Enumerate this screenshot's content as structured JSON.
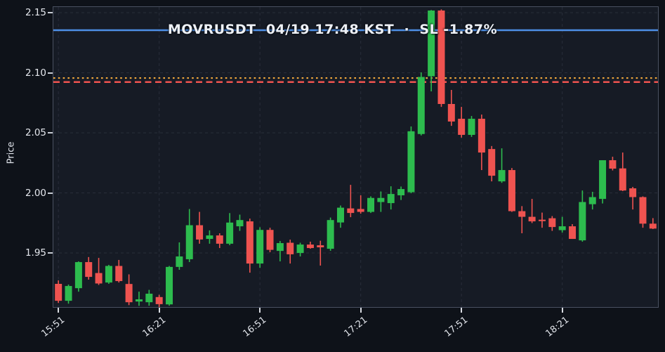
{
  "title": "MOVRUSDT  04/19 17:48 KST  ·  SL -1.87%",
  "colors": {
    "figure_bg": "#0e1219",
    "plot_bg": "#161b25",
    "spine": "#4a5161",
    "grid": "#272c38",
    "candle_up": "#2dbc4e",
    "candle_down": "#ef5350",
    "line_blue": "#4d8fe6",
    "line_orange": "#f0a73c",
    "line_red": "#f0534f",
    "tick_text": "#e4e7ed"
  },
  "chart_data": {
    "type": "candlestick",
    "title": "MOVRUSDT  04/19 17:48 KST  ·  SL -1.87%",
    "symbol": "MOVRUSDT",
    "event_time": "04/19 17:48 KST",
    "stoploss_label": "SL -1.87%",
    "xlabel": "",
    "ylabel": "Price",
    "ylim": [
      1.905,
      2.1547
    ],
    "y_ticks": [
      2.15,
      2.1,
      2.05,
      2.0,
      1.95
    ],
    "y_tick_labels": [
      "2.15",
      "2.10",
      "2.05",
      "2.00",
      "1.95"
    ],
    "x_tick_indices": [
      0,
      10,
      20,
      30,
      40,
      50
    ],
    "x_tick_labels": [
      "15:51",
      "16:21",
      "16:51",
      "17:21",
      "17:51",
      "18:21"
    ],
    "grid": "dashed",
    "interval_minutes": 3,
    "hlines": [
      {
        "name": "blue-solid-line",
        "value": 2.1354,
        "style": "solid",
        "color": "#4d8fe6",
        "width": 2.5
      },
      {
        "name": "orange-dotted-line",
        "value": 2.0956,
        "style": "dotted",
        "color": "#f0a73c",
        "width": 2.2
      },
      {
        "name": "red-dashed-line",
        "value": 2.0923,
        "style": "dashed",
        "color": "#f0534f",
        "width": 2.5
      }
    ],
    "candles_columns": [
      "time",
      "open",
      "high",
      "low",
      "close"
    ],
    "candles": [
      [
        "15:51",
        1.9243,
        1.9272,
        1.9084,
        1.9102
      ],
      [
        "15:54",
        1.9102,
        1.9237,
        1.9078,
        1.9225
      ],
      [
        "15:57",
        1.9207,
        1.943,
        1.9178,
        1.9424
      ],
      [
        "16:00",
        1.9424,
        1.9466,
        1.9278,
        1.9301
      ],
      [
        "16:03",
        1.9333,
        1.9459,
        1.9234,
        1.9246
      ],
      [
        "16:06",
        1.9254,
        1.9401,
        1.9243,
        1.9392
      ],
      [
        "16:09",
        1.9392,
        1.9442,
        1.9254,
        1.9266
      ],
      [
        "16:12",
        1.9242,
        1.9322,
        1.9066,
        1.909
      ],
      [
        "16:15",
        1.9096,
        1.9178,
        1.906,
        1.9114
      ],
      [
        "16:18",
        1.909,
        1.9193,
        1.9061,
        1.9161
      ],
      [
        "16:21",
        1.9133,
        1.9152,
        1.9049,
        1.9074
      ],
      [
        "16:24",
        1.9072,
        1.9392,
        1.9061,
        1.9384
      ],
      [
        "16:27",
        1.9384,
        1.9588,
        1.936,
        1.9471
      ],
      [
        "16:30",
        1.9448,
        1.9866,
        1.9424,
        1.9731
      ],
      [
        "16:33",
        1.9731,
        1.9842,
        1.9577,
        1.9612
      ],
      [
        "16:36",
        1.9617,
        1.9688,
        1.9577,
        1.9646
      ],
      [
        "16:39",
        1.9646,
        1.9664,
        1.9541,
        1.9577
      ],
      [
        "16:42",
        1.9577,
        1.9832,
        1.9565,
        1.9753
      ],
      [
        "16:45",
        1.9722,
        1.9819,
        1.9684,
        1.9774
      ],
      [
        "16:48",
        1.9763,
        1.9786,
        1.9336,
        1.9412
      ],
      [
        "16:51",
        1.9412,
        1.9714,
        1.9377,
        1.9692
      ],
      [
        "16:54",
        1.9692,
        1.971,
        1.9506,
        1.9526
      ],
      [
        "16:57",
        1.9517,
        1.96,
        1.943,
        1.9582
      ],
      [
        "17:00",
        1.9585,
        1.9611,
        1.9412,
        1.9489
      ],
      [
        "17:03",
        1.95,
        1.9585,
        1.9471,
        1.957
      ],
      [
        "17:06",
        1.957,
        1.9594,
        1.9535,
        1.9541
      ],
      [
        "17:09",
        1.9564,
        1.9602,
        1.9395,
        1.9547
      ],
      [
        "17:12",
        1.9535,
        1.9795,
        1.9518,
        1.9774
      ],
      [
        "17:15",
        1.9754,
        1.9895,
        1.971,
        1.9877
      ],
      [
        "17:18",
        1.9871,
        2.0067,
        1.9798,
        1.9833
      ],
      [
        "17:21",
        1.9866,
        1.998,
        1.9827,
        1.9842
      ],
      [
        "17:24",
        1.9842,
        1.9971,
        1.9833,
        1.9958
      ],
      [
        "17:27",
        1.9924,
        2.0012,
        1.9842,
        1.9958
      ],
      [
        "17:30",
        1.9915,
        2.0055,
        1.9862,
        1.9991
      ],
      [
        "17:33",
        1.998,
        2.0053,
        1.9941,
        2.0032
      ],
      [
        "17:36",
        2.0006,
        2.0553,
        1.9997,
        2.0513
      ],
      [
        "17:39",
        2.049,
        2.1003,
        2.0478,
        2.0965
      ],
      [
        "17:42",
        2.0971,
        2.1522,
        2.0845,
        2.1518
      ],
      [
        "17:45",
        2.1518,
        2.1527,
        2.0716,
        2.074
      ],
      [
        "17:48",
        2.074,
        2.0857,
        2.0558,
        2.0594
      ],
      [
        "17:51",
        2.0617,
        2.0716,
        2.046,
        2.0483
      ],
      [
        "17:54",
        2.0483,
        2.064,
        2.0466,
        2.0617
      ],
      [
        "17:57",
        2.0617,
        2.0652,
        2.019,
        2.0336
      ],
      [
        "18:00",
        2.0365,
        2.039,
        2.0096,
        2.0143
      ],
      [
        "18:03",
        2.0096,
        2.0371,
        2.0084,
        2.019
      ],
      [
        "18:06",
        2.019,
        2.0207,
        1.9842,
        1.9848
      ],
      [
        "18:09",
        1.9848,
        1.989,
        1.9664,
        1.9801
      ],
      [
        "18:12",
        1.9801,
        1.995,
        1.9749,
        1.9763
      ],
      [
        "18:15",
        1.9777,
        1.9836,
        1.971,
        1.9765
      ],
      [
        "18:18",
        1.9789,
        1.9807,
        1.9684,
        1.9716
      ],
      [
        "18:21",
        1.969,
        1.9801,
        1.967,
        1.9722
      ],
      [
        "18:24",
        1.9722,
        1.974,
        1.9617,
        1.9617
      ],
      [
        "18:27",
        1.9605,
        2.002,
        1.9594,
        1.9924
      ],
      [
        "18:30",
        1.9906,
        2.0009,
        1.9862,
        1.9965
      ],
      [
        "18:33",
        1.995,
        2.0272,
        1.9912,
        2.0272
      ],
      [
        "18:36",
        2.0272,
        2.0301,
        2.0187,
        2.0202
      ],
      [
        "18:39",
        2.0204,
        2.0336,
        2.0015,
        2.002
      ],
      [
        "18:42",
        2.0038,
        2.005,
        1.9862,
        1.9965
      ],
      [
        "18:45",
        1.9965,
        1.9971,
        1.971,
        1.9744
      ],
      [
        "18:48",
        1.9744,
        1.979,
        1.9699,
        1.9703
      ]
    ]
  }
}
